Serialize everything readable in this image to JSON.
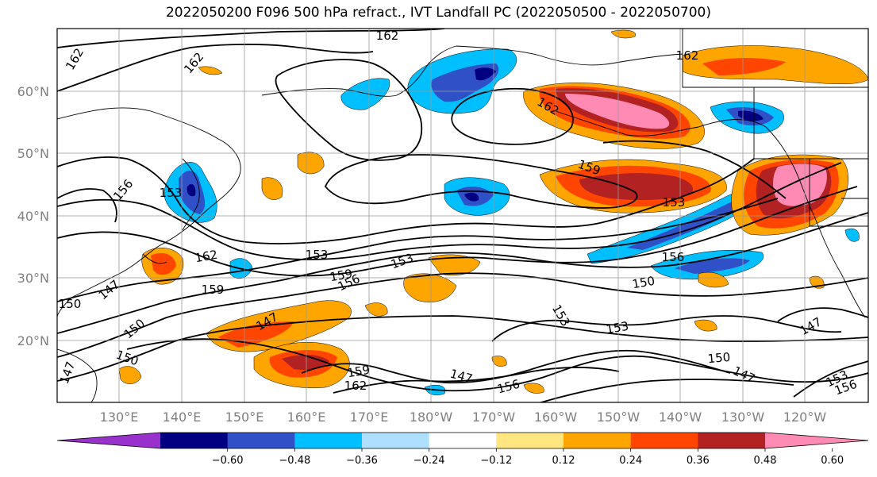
{
  "title": "2022050200 F096 500 hPa refract., IVT Landfall PC (2022050500 - 2022050700)",
  "lat_labels": [
    "60°N",
    "50°N",
    "40°N",
    "30°N",
    "20°N"
  ],
  "lon_labels": [
    "130°E",
    "140°E",
    "150°E",
    "160°E",
    "170°E",
    "180°W",
    "170°W",
    "160°W",
    "150°W",
    "140°W",
    "130°W",
    "120°W"
  ],
  "contour_labels": [
    "162",
    "162",
    "162",
    "162",
    "162",
    "159",
    "156",
    "153",
    "153",
    "153",
    "156",
    "153",
    "159",
    "162",
    "159",
    "150",
    "147",
    "150",
    "150",
    "147",
    "153",
    "156",
    "153",
    "150",
    "147",
    "150",
    "147",
    "153",
    "156",
    "147",
    "147",
    "159",
    "162",
    "156"
  ],
  "colorbar": {
    "ticks": [
      "−0.60",
      "−0.48",
      "−0.36",
      "−0.24",
      "−0.12",
      "0.12",
      "0.24",
      "0.36",
      "0.48",
      "0.60"
    ],
    "colors": [
      "#9932CC",
      "#000080",
      "#3050C8",
      "#00BFFF",
      "#B0E0FF",
      "#FFFFFF",
      "#FFE680",
      "#FFA500",
      "#FF4500",
      "#B22222",
      "#FF8AB4"
    ]
  }
}
